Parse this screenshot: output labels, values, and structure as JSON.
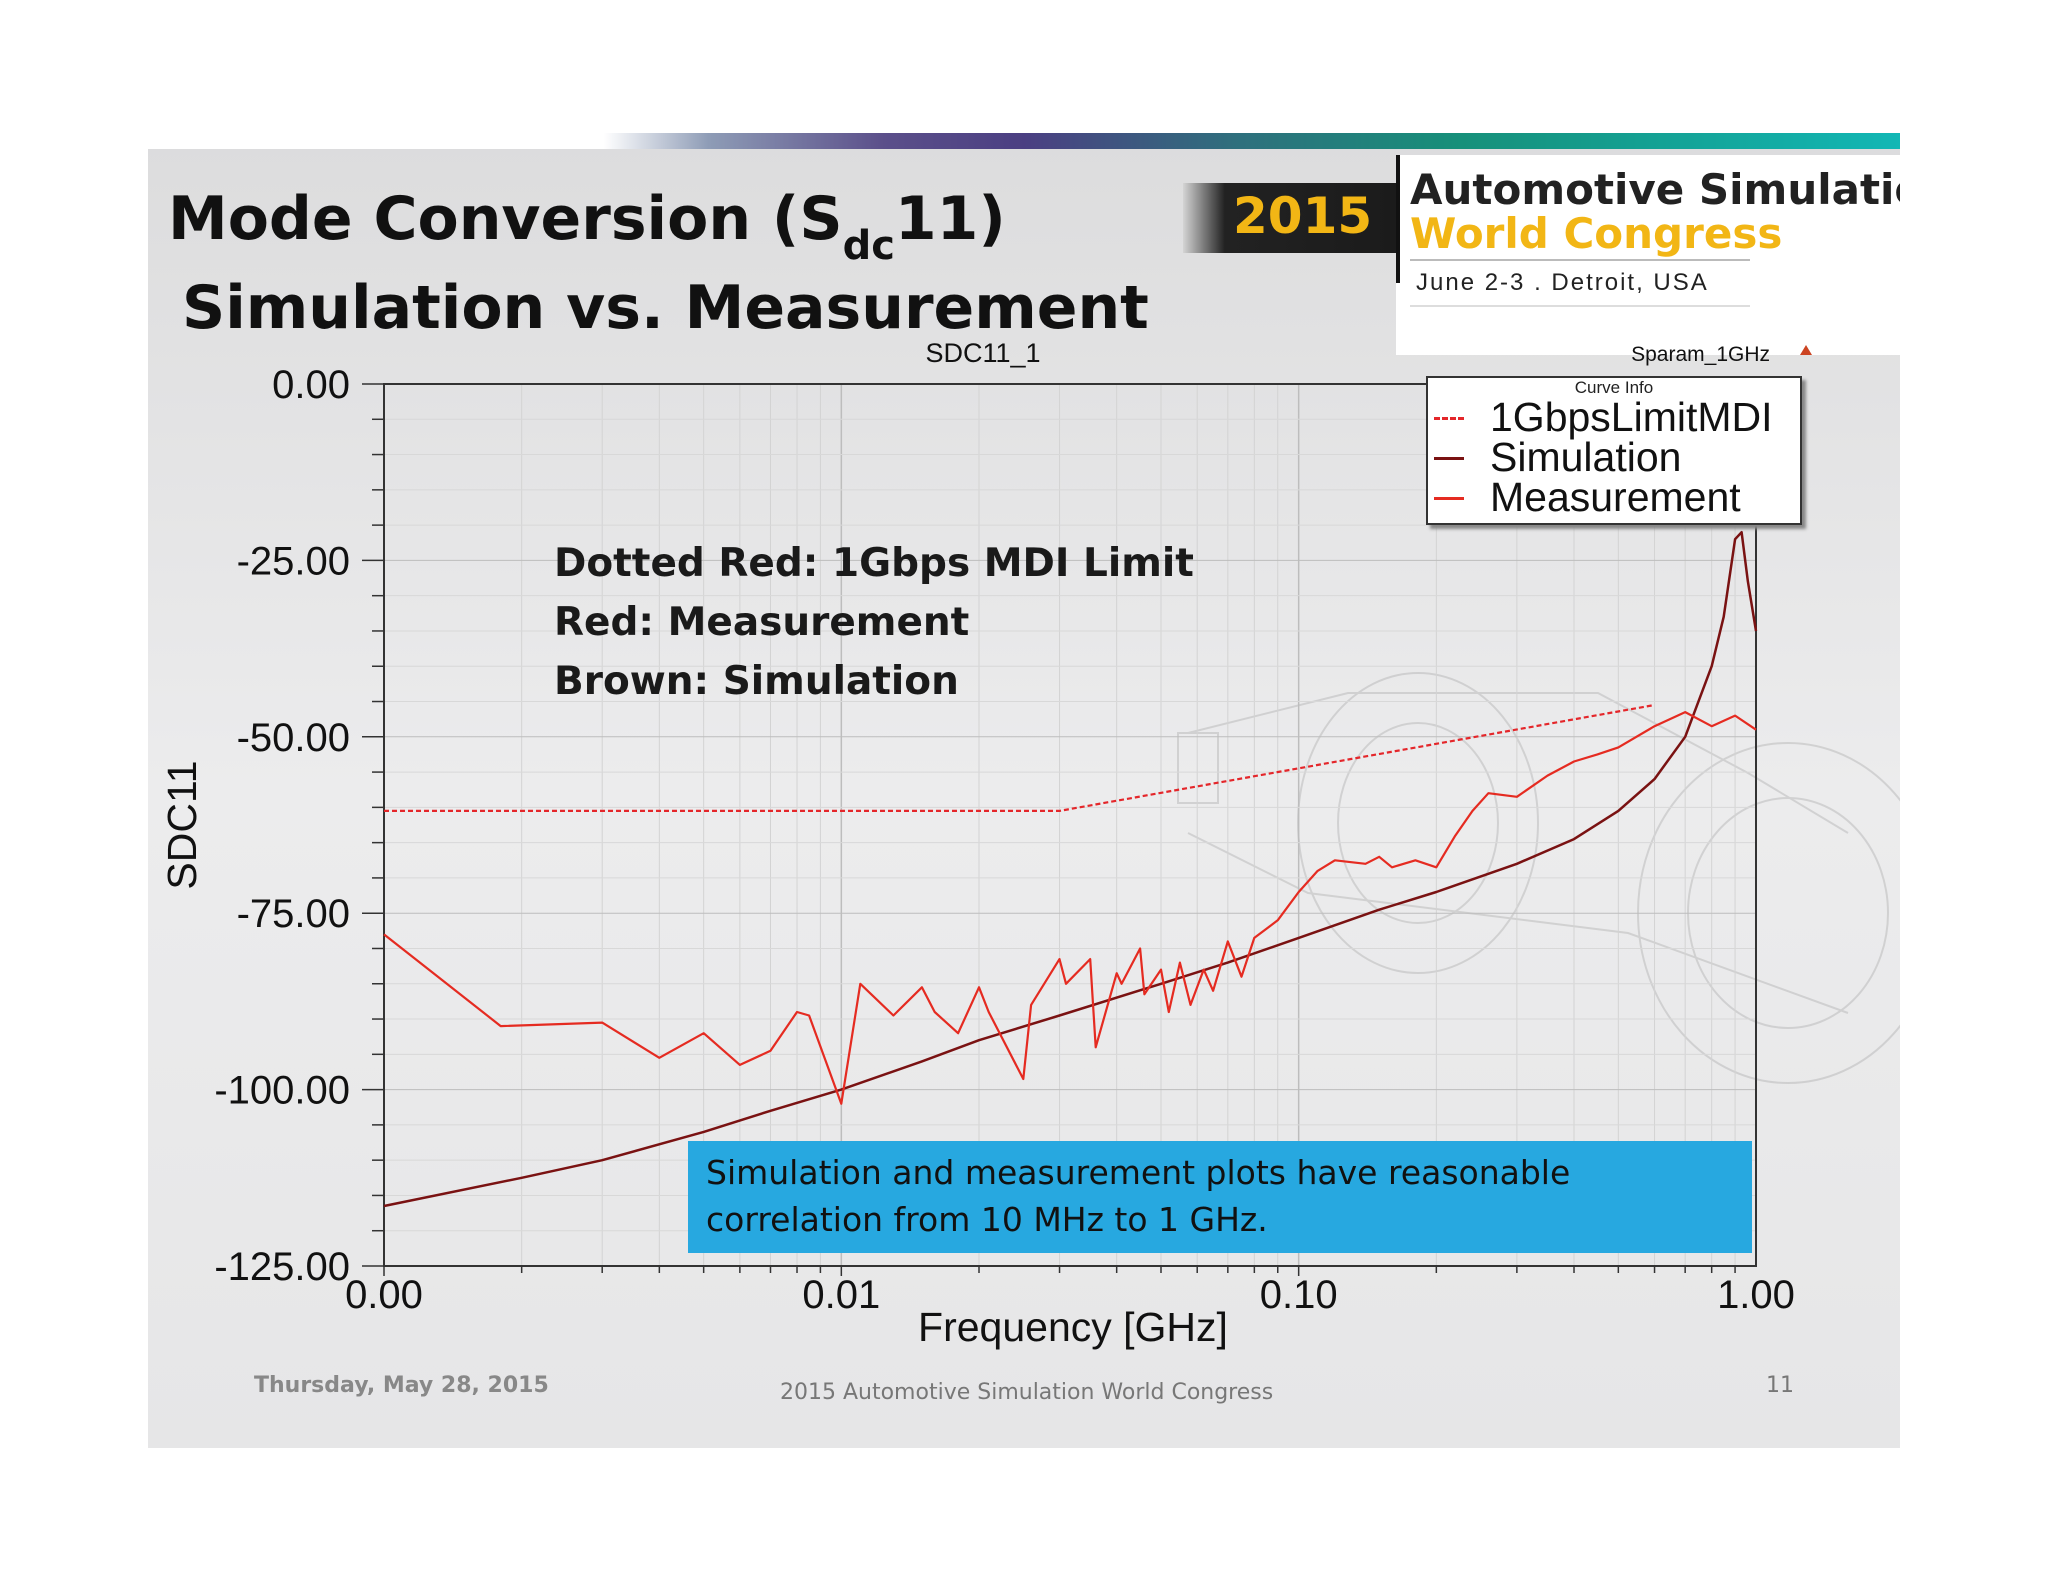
{
  "slide": {
    "title_line1_pre": "Mode Conversion (S",
    "title_line1_sub": "dc",
    "title_line1_post": "11)",
    "title_line2": "Simulation vs. Measurement"
  },
  "branding": {
    "year": "2015",
    "line1": "Automotive Simulation",
    "line2": "World Congress",
    "line3": "June 2-3  .  Detroit, USA"
  },
  "annotations": [
    "Dotted Red: 1Gbps MDI Limit",
    "Red: Measurement",
    "Brown: Simulation"
  ],
  "note": "Simulation and measurement plots have reasonable correlation from 10 MHz to 1 GHz.",
  "footer": {
    "date": "Thursday, May 28, 2015",
    "center": "2015 Automotive Simulation World Congress",
    "page": "11"
  },
  "colors": {
    "limit": "#e4262a",
    "simulation": "#7a1212",
    "measurement": "#e52b21",
    "note_bg": "#27a8e0",
    "brand_gold": "#f2b615"
  },
  "chart_data": {
    "type": "line",
    "title": "SDC11_1",
    "corner_label": "Sparam_1GHz",
    "xlabel": "Frequency [GHz]",
    "ylabel": "SDC11",
    "xscale": "log",
    "xlim": [
      0.001,
      1.0
    ],
    "ylim": [
      -125,
      0
    ],
    "x_ticks": [
      0.001,
      0.01,
      0.1,
      1.0
    ],
    "x_tick_labels": [
      "0.00",
      "0.01",
      "0.10",
      "1.00"
    ],
    "y_ticks": [
      0,
      -25,
      -50,
      -75,
      -100,
      -125
    ],
    "y_tick_labels": [
      "0.00",
      "-25.00",
      "-50.00",
      "-75.00",
      "-100.00",
      "-125.00"
    ],
    "legend_title": "Curve Info",
    "legend": [
      "1GbpsLimitMDI",
      "Simulation",
      "Measurement"
    ],
    "series": [
      {
        "name": "1GbpsLimitMDI",
        "style": "dashed",
        "x": [
          0.001,
          0.03,
          0.6
        ],
        "y": [
          -60.5,
          -60.5,
          -45.5
        ]
      },
      {
        "name": "Simulation",
        "style": "solid",
        "x": [
          0.001,
          0.002,
          0.003,
          0.005,
          0.007,
          0.01,
          0.015,
          0.02,
          0.03,
          0.05,
          0.07,
          0.1,
          0.15,
          0.2,
          0.3,
          0.4,
          0.5,
          0.6,
          0.7,
          0.8,
          0.85,
          0.9,
          0.93,
          0.96,
          1.0
        ],
        "y": [
          -116.5,
          -112.5,
          -110,
          -106,
          -103,
          -100,
          -96,
          -93,
          -89.5,
          -85,
          -82,
          -78.5,
          -74.5,
          -72,
          -68,
          -64.5,
          -60.5,
          -56,
          -50,
          -40,
          -33,
          -22,
          -21,
          -28,
          -35
        ]
      },
      {
        "name": "Measurement",
        "style": "solid",
        "x": [
          0.001,
          0.0018,
          0.003,
          0.004,
          0.005,
          0.006,
          0.007,
          0.008,
          0.0085,
          0.01,
          0.011,
          0.013,
          0.015,
          0.016,
          0.018,
          0.02,
          0.021,
          0.025,
          0.026,
          0.03,
          0.031,
          0.035,
          0.036,
          0.04,
          0.041,
          0.045,
          0.046,
          0.05,
          0.052,
          0.055,
          0.058,
          0.062,
          0.065,
          0.07,
          0.075,
          0.08,
          0.09,
          0.1,
          0.11,
          0.12,
          0.14,
          0.15,
          0.16,
          0.18,
          0.2,
          0.22,
          0.24,
          0.26,
          0.3,
          0.35,
          0.4,
          0.45,
          0.5,
          0.6,
          0.7,
          0.8,
          0.9,
          1.0
        ],
        "y": [
          -78,
          -91,
          -90.5,
          -95.5,
          -92,
          -96.5,
          -94.5,
          -89,
          -89.5,
          -102,
          -85,
          -89.5,
          -85.5,
          -89,
          -92,
          -85.5,
          -89,
          -98.5,
          -88,
          -81.5,
          -85,
          -81.5,
          -94,
          -83.5,
          -85,
          -80,
          -86.5,
          -83,
          -89,
          -82,
          -88,
          -83,
          -86,
          -79,
          -84,
          -78.5,
          -76,
          -72,
          -69,
          -67.5,
          -68,
          -67,
          -68.5,
          -67.5,
          -68.5,
          -64,
          -60.5,
          -58,
          -58.5,
          -55.5,
          -53.5,
          -52.5,
          -51.5,
          -48.5,
          -46.5,
          -48.5,
          -47,
          -49
        ]
      }
    ]
  }
}
